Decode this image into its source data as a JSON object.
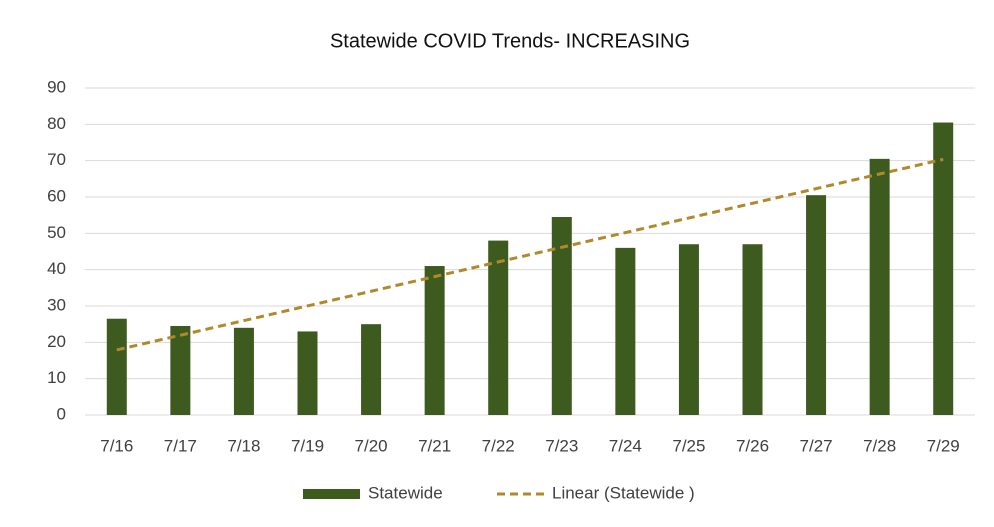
{
  "chart_data": {
    "type": "bar",
    "title": "Statewide COVID Trends-  INCREASING",
    "categories": [
      "7/16",
      "7/17",
      "7/18",
      "7/19",
      "7/20",
      "7/21",
      "7/22",
      "7/23",
      "7/24",
      "7/25",
      "7/26",
      "7/27",
      "7/28",
      "7/29"
    ],
    "series": [
      {
        "name": "Statewide",
        "color": "#3d5a1f",
        "values": [
          26.5,
          24.5,
          24,
          23,
          25,
          41,
          48,
          54.5,
          46,
          47,
          47,
          60.5,
          70.5,
          80.5
        ]
      }
    ],
    "trendline": {
      "kind": "linear",
      "name": "Linear (Statewide )",
      "color": "#b08a2a"
    },
    "ylim": [
      0,
      90
    ],
    "yticks": [
      0,
      10,
      20,
      30,
      40,
      50,
      60,
      70,
      80,
      90
    ],
    "grid": true,
    "legend": "bottom"
  }
}
